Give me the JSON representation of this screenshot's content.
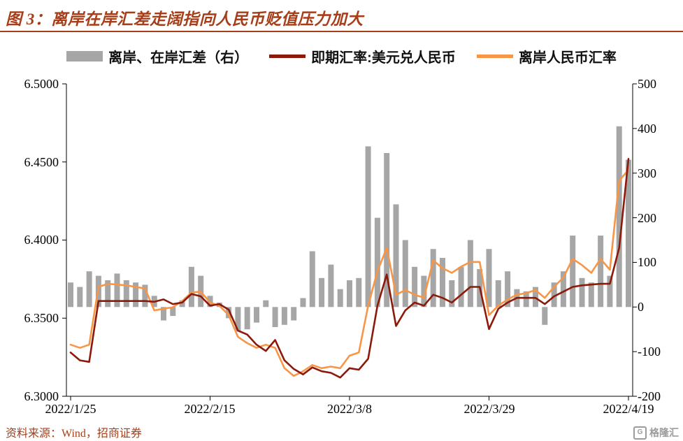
{
  "header": {
    "title": "图 3：离岸在岸汇差走阔指向人民币贬值压力加大"
  },
  "footer": {
    "source": "资料来源：Wind，招商证券",
    "logo_text": "格隆汇",
    "logo_letter": "G"
  },
  "colors": {
    "accent": "#A53E19",
    "axis": "#000000",
    "bar": "#A6A6A6",
    "spot_line": "#8C1A0B",
    "cnh_line": "#F79646"
  },
  "chart_data": {
    "type": "combo",
    "title": "离岸在岸汇差走阔指向人民币贬值压力加大",
    "x": [
      "2022/1/25",
      "2022/1/26",
      "2022/1/27",
      "2022/1/28",
      "2022/1/31",
      "2022/2/1",
      "2022/2/2",
      "2022/2/3",
      "2022/2/4",
      "2022/2/7",
      "2022/2/8",
      "2022/2/9",
      "2022/2/10",
      "2022/2/11",
      "2022/2/14",
      "2022/2/15",
      "2022/2/16",
      "2022/2/17",
      "2022/2/18",
      "2022/2/21",
      "2022/2/22",
      "2022/2/23",
      "2022/2/24",
      "2022/2/25",
      "2022/2/28",
      "2022/3/1",
      "2022/3/2",
      "2022/3/3",
      "2022/3/4",
      "2022/3/7",
      "2022/3/8",
      "2022/3/9",
      "2022/3/10",
      "2022/3/11",
      "2022/3/14",
      "2022/3/15",
      "2022/3/16",
      "2022/3/17",
      "2022/3/18",
      "2022/3/21",
      "2022/3/22",
      "2022/3/23",
      "2022/3/24",
      "2022/3/25",
      "2022/3/28",
      "2022/3/29",
      "2022/3/30",
      "2022/3/31",
      "2022/4/1",
      "2022/4/4",
      "2022/4/5",
      "2022/4/6",
      "2022/4/7",
      "2022/4/8",
      "2022/4/11",
      "2022/4/12",
      "2022/4/13",
      "2022/4/14",
      "2022/4/15",
      "2022/4/18",
      "2022/4/19"
    ],
    "series": [
      {
        "name": "离岸、在岸汇差（右）",
        "type": "bar",
        "axis": "right",
        "color": "#A6A6A6",
        "values": [
          55,
          45,
          80,
          70,
          60,
          75,
          60,
          55,
          50,
          25,
          -30,
          -20,
          15,
          90,
          70,
          25,
          10,
          -25,
          -55,
          -50,
          -35,
          15,
          -45,
          -40,
          -30,
          20,
          125,
          65,
          95,
          40,
          60,
          65,
          360,
          200,
          345,
          230,
          150,
          90,
          70,
          130,
          110,
          60,
          90,
          150,
          85,
          130,
          60,
          80,
          40,
          35,
          45,
          -40,
          55,
          80,
          160,
          65,
          55,
          160,
          70,
          405,
          330
        ]
      },
      {
        "name": "即期汇率:美元兑人民币",
        "type": "line",
        "axis": "left",
        "color": "#8C1A0B",
        "values": [
          6.328,
          6.323,
          6.322,
          6.361,
          6.361,
          6.361,
          6.361,
          6.361,
          6.361,
          6.3605,
          6.362,
          6.359,
          6.36,
          6.3655,
          6.364,
          6.358,
          6.359,
          6.3555,
          6.342,
          6.3395,
          6.333,
          6.329,
          6.336,
          6.323,
          6.3175,
          6.314,
          6.3185,
          6.316,
          6.315,
          6.312,
          6.318,
          6.317,
          6.324,
          6.358,
          6.378,
          6.345,
          6.355,
          6.36,
          6.358,
          6.365,
          6.363,
          6.36,
          6.365,
          6.37,
          6.37,
          6.343,
          6.356,
          6.36,
          6.363,
          6.363,
          6.363,
          6.359,
          6.364,
          6.367,
          6.37,
          6.371,
          6.3715,
          6.372,
          6.372,
          6.395,
          6.452
        ]
      },
      {
        "name": "离岸人民币汇率",
        "type": "line",
        "axis": "left",
        "color": "#F79646",
        "values": [
          6.333,
          6.331,
          6.333,
          6.37,
          6.372,
          6.3715,
          6.371,
          6.37,
          6.369,
          6.355,
          6.356,
          6.357,
          6.361,
          6.3665,
          6.367,
          6.36,
          6.358,
          6.352,
          6.338,
          6.334,
          6.331,
          6.333,
          6.331,
          6.318,
          6.313,
          6.316,
          6.32,
          6.318,
          6.319,
          6.318,
          6.326,
          6.328,
          6.358,
          6.38,
          6.395,
          6.365,
          6.368,
          6.365,
          6.363,
          6.387,
          6.382,
          6.379,
          6.383,
          6.386,
          6.386,
          6.352,
          6.358,
          6.362,
          6.365,
          6.366,
          6.368,
          6.363,
          6.37,
          6.376,
          6.388,
          6.384,
          6.379,
          6.388,
          6.381,
          6.438,
          6.445
        ]
      }
    ],
    "left_axis": {
      "ticks": [
        "6.5000",
        "6.4500",
        "6.4000",
        "6.3500",
        "6.3000"
      ],
      "range": [
        6.3,
        6.5
      ]
    },
    "right_axis": {
      "ticks": [
        "500",
        "400",
        "300",
        "200",
        "100",
        "0",
        "-100",
        "-200"
      ],
      "range": [
        -200,
        500
      ]
    },
    "x_ticks": [
      {
        "label": "2022/1/25",
        "index": 0
      },
      {
        "label": "2022/2/15",
        "index": 15
      },
      {
        "label": "2022/3/8",
        "index": 30
      },
      {
        "label": "2022/3/29",
        "index": 45
      },
      {
        "label": "2022/4/19",
        "index": 60
      }
    ],
    "grid": false,
    "legend_position": "top"
  }
}
